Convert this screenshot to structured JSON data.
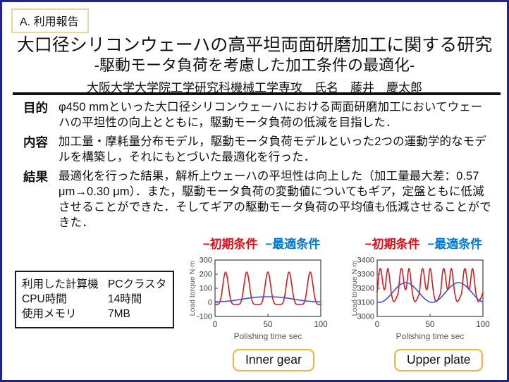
{
  "report_label": "A. 利用報告",
  "title": {
    "line1": "大口径シリコンウェーハの高平坦両面研磨加工に関する研究",
    "line2": "-駆動モータ負荷を考慮した加工条件の最適化-",
    "author": "大阪大学大学院工学研究科機械工学専攻　氏名　藤井　慶太郎"
  },
  "sections": [
    {
      "label": "目的",
      "text": "φ450 mmといった大口径シリコンウェーハにおける両面研磨加工においてウェーハの平坦性の向上とともに，駆動モータ負荷の低減を目指した．"
    },
    {
      "label": "内容",
      "text": "加工量・摩耗量分布モデル，駆動モータ負荷モデルといった2つの運動学的なモデルを構築し，それにもとづいた最適化を行った．"
    },
    {
      "label": "結果",
      "text": "最適化を行った結果，解析上ウェーハの平坦性は向上した（加工量最大差：0.57 μm→0.30 μm）．また，駆動モータ負荷の変動値についてもギア，定盤ともに低減させることができた．そしてギアの駆動モータ負荷の平均値も低減させることができた．"
    }
  ],
  "compute_info": {
    "rows": [
      {
        "label": "利用した計算機",
        "value": "PCクラスタ"
      },
      {
        "label": "CPU時間",
        "value": "14時間"
      },
      {
        "label": "使用メモリ",
        "value": "7MB"
      }
    ]
  },
  "legend": {
    "initial": "−初期条件",
    "optimal": "−最適条件",
    "initial_color": "#e01018",
    "optimal_color": "#0077c8"
  },
  "badges": {
    "left": "Inner gear",
    "right": "Upper plate"
  },
  "chart_data": [
    {
      "type": "line",
      "name": "Inner gear",
      "xlabel": "Polishing time sec",
      "ylabel": "Load torque N·m",
      "xlim": [
        0,
        100
      ],
      "ylim": [
        -100,
        300
      ],
      "xticks": [
        0,
        50,
        100
      ],
      "yticks": [
        -100,
        0,
        100,
        200,
        300
      ],
      "grid": false,
      "legend_position": "top",
      "series": [
        {
          "name": "初期条件",
          "color": "#d01f1f",
          "x_start": 0,
          "x_step": 1,
          "values": [
            -15,
            -15,
            -14.8,
            -13,
            -5.5,
            13.8,
            49.5,
            100,
            155,
            198.5,
            215,
            198.5,
            155,
            100,
            49.5,
            13.8,
            -5.5,
            -13,
            -14.8,
            -15,
            -15,
            -15,
            -14.8,
            -13,
            -5.5,
            13.8,
            49.5,
            100,
            155,
            198.5,
            215,
            198.5,
            155,
            100,
            49.5,
            13.8,
            -5.5,
            -13,
            -14.8,
            -15,
            -15,
            -15,
            -14.8,
            -13,
            -5.5,
            13.8,
            49.5,
            100,
            155,
            198.5,
            215,
            198.5,
            155,
            100,
            49.5,
            13.8,
            -5.5,
            -13,
            -14.8,
            -15,
            -15,
            -15,
            -14.8,
            -13,
            -5.5,
            13.8,
            49.5,
            100,
            155,
            198.5,
            215,
            198.5,
            155,
            100,
            49.5,
            13.8,
            -5.5,
            -13,
            -14.8,
            -15,
            -15,
            -15,
            -14.8,
            -13,
            -5.5,
            13.8,
            49.5,
            100,
            155,
            198.5,
            215,
            198.5,
            155,
            100,
            49.5,
            13.8,
            -5.5,
            -13,
            -14.8,
            -15,
            -15
          ]
        },
        {
          "name": "最適条件",
          "color": "#4a52c8",
          "x_start": 0,
          "x_step": 5,
          "values": [
            4,
            5,
            7,
            11,
            16,
            22,
            28,
            33,
            37,
            39,
            40,
            39,
            37,
            33,
            28,
            22,
            16,
            11,
            7,
            5,
            4
          ]
        }
      ]
    },
    {
      "type": "line",
      "name": "Upper plate",
      "xlabel": "Polishing time sec",
      "ylabel": "Load torque N·m",
      "xlim": [
        0,
        100
      ],
      "ylim": [
        3000,
        3400
      ],
      "xticks": [
        0,
        50,
        100
      ],
      "yticks": [
        3000,
        3100,
        3200,
        3300,
        3400
      ],
      "grid": false,
      "legend_position": "top",
      "series": [
        {
          "name": "初期条件",
          "color": "#d01f1f",
          "x_start": 0,
          "x_step": 1,
          "values": [
            3170,
            3250,
            3320,
            3340,
            3315,
            3255,
            3205,
            3190,
            3225,
            3300,
            3340,
            3315,
            3250,
            3185,
            3140,
            3112,
            3105,
            3115,
            3130,
            3148,
            3170,
            3250,
            3320,
            3340,
            3315,
            3255,
            3205,
            3190,
            3225,
            3300,
            3340,
            3315,
            3250,
            3185,
            3140,
            3112,
            3105,
            3115,
            3130,
            3148,
            3170,
            3250,
            3320,
            3340,
            3315,
            3255,
            3205,
            3190,
            3225,
            3300,
            3340,
            3315,
            3250,
            3185,
            3140,
            3112,
            3105,
            3115,
            3130,
            3148,
            3170,
            3250,
            3320,
            3340,
            3315,
            3255,
            3205,
            3190,
            3225,
            3300,
            3340,
            3315,
            3250,
            3185,
            3140,
            3112,
            3105,
            3115,
            3130,
            3148,
            3170,
            3250,
            3320,
            3340,
            3315,
            3255,
            3205,
            3190,
            3225,
            3300,
            3340,
            3315,
            3250,
            3185,
            3140,
            3112,
            3105,
            3115,
            3130,
            3148,
            3170
          ]
        },
        {
          "name": "最適条件",
          "color": "#4a52c8",
          "x_start": 0,
          "x_step": 2.5,
          "values": [
            3102,
            3100,
            3105,
            3116,
            3132,
            3153,
            3174,
            3196,
            3215,
            3229,
            3238,
            3240,
            3235,
            3224,
            3207,
            3187,
            3166,
            3144,
            3125,
            3111,
            3102,
            3100,
            3105,
            3116,
            3132,
            3153,
            3174,
            3196,
            3215,
            3229,
            3238,
            3240,
            3235,
            3224,
            3207,
            3187,
            3166,
            3144,
            3125,
            3111,
            3102
          ]
        }
      ]
    }
  ]
}
